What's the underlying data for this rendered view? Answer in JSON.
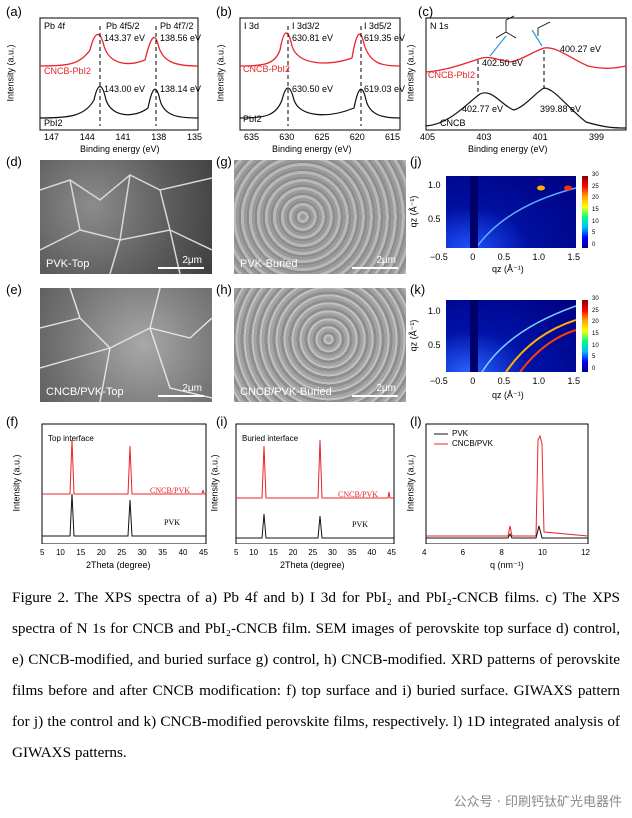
{
  "panels": {
    "a": {
      "label": "(a)",
      "title": "Pb 4f",
      "peak1": "Pb 4f5/2",
      "peak2": "Pb 4f7/2",
      "v1": "143.37 eV",
      "v2": "138.56 eV",
      "v3": "143.00 eV",
      "v4": "138.14 eV",
      "s1": "CNCB-PbI2",
      "s2": "PbI2",
      "xlabel": "Binding energy (eV)",
      "ylabel": "Intensity (a.u.)",
      "ticks": [
        "147",
        "144",
        "141",
        "138",
        "135"
      ]
    },
    "b": {
      "label": "(b)",
      "title": "I 3d",
      "peak1": "I 3d3/2",
      "peak2": "I 3d5/2",
      "v1": "630.81 eV",
      "v2": "619.35 eV",
      "v3": "630.50 eV",
      "v4": "619.03 eV",
      "s1": "CNCB-PbI2",
      "s2": "PbI2",
      "xlabel": "Binding energy (eV)",
      "ylabel": "Intensity (a.u.)",
      "ticks": [
        "635",
        "630",
        "625",
        "620",
        "615"
      ]
    },
    "c": {
      "label": "(c)",
      "title": "N 1s",
      "v1": "400.27 eV",
      "v2": "402.50 eV",
      "v3": "402.77 eV",
      "v4": "399.88 eV",
      "s1": "CNCB-PbI2",
      "s2": "CNCB",
      "xlabel": "Binding energy (eV)",
      "ylabel": "Intensity (a.u.)",
      "ticks": [
        "405",
        "403",
        "401",
        "399"
      ]
    },
    "d": {
      "label": "(d)",
      "text": "PVK-Top",
      "scale": "2μm"
    },
    "e": {
      "label": "(e)",
      "text": "CNCB/PVK-Top",
      "scale": "2μm"
    },
    "g": {
      "label": "(g)",
      "text": "PVK-Buried",
      "scale": "2μm"
    },
    "h": {
      "label": "(h)",
      "text": "CNCB/PVK-Buried",
      "scale": "2μm"
    },
    "j": {
      "label": "(j)",
      "ylabel": "qz (Å⁻¹)",
      "xlabel": "qz (Å⁻¹)",
      "yticks": [
        "1.0",
        "0.5"
      ],
      "xticks": [
        "−0.5",
        "0",
        "0.5",
        "1.0",
        "1.5"
      ],
      "cbar": [
        "30",
        "25",
        "20",
        "15",
        "10",
        "5",
        "0"
      ]
    },
    "k": {
      "label": "(k)",
      "ylabel": "qz (Å⁻¹)",
      "xlabel": "qz (Å⁻¹)",
      "yticks": [
        "1.0",
        "0.5"
      ],
      "xticks": [
        "−0.5",
        "0",
        "0.5",
        "1.0",
        "1.5"
      ],
      "cbar": [
        "30",
        "25",
        "20",
        "15",
        "10",
        "5",
        "0"
      ]
    },
    "f": {
      "label": "(f)",
      "title": "Top interface",
      "s1": "CNCB/PVK",
      "s2": "PVK",
      "xlabel": "2Theta (degree)",
      "ylabel": "Intensity (a.u.)",
      "ticks": [
        "5",
        "10",
        "15",
        "20",
        "25",
        "30",
        "35",
        "40",
        "45"
      ]
    },
    "i": {
      "label": "(i)",
      "title": "Buried interface",
      "s1": "CNCB/PVK",
      "s2": "PVK",
      "xlabel": "2Theta (degree)",
      "ylabel": "Intensity (a.u.)",
      "ticks": [
        "5",
        "10",
        "15",
        "20",
        "25",
        "30",
        "35",
        "40",
        "45"
      ]
    },
    "l": {
      "label": "(l)",
      "s1": "PVK",
      "s2": "CNCB/PVK",
      "xlabel": "q (nm⁻¹)",
      "ylabel": "Intensity (a.u.)",
      "ticks": [
        "4",
        "6",
        "8",
        "10",
        "12"
      ]
    }
  },
  "caption": "Figure 2. The XPS spectra of a) Pb 4f and b) I 3d for PbI₂ and PbI₂-CNCB films. c) The XPS spectra of N 1s for CNCB and PbI₂-CNCB film. SEM images of perovskite top surface d) control, e) CNCB-modified, and buried surface g) control, h) CNCB-modified. XRD patterns of perovskite films before and after CNCB modification: f) top surface and i) buried surface. GIWAXS pattern for j) the control and k) CNCB-modified perovskite films, respectively. l) 1D integrated analysis of GIWAXS patterns.",
  "watermark": "公众号 · 印刷钙钛矿光电器件",
  "colors": {
    "red": "#e8242a",
    "black": "#111111"
  }
}
